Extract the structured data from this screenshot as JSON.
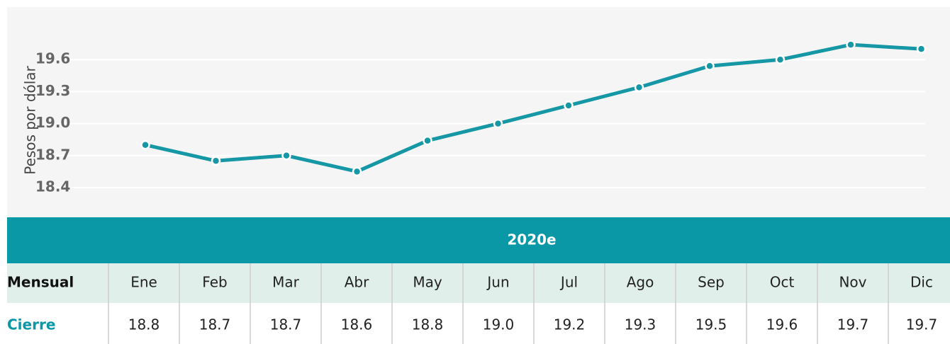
{
  "chart_data": {
    "type": "line",
    "ylabel": "Pesos por dólar",
    "values": [
      18.8,
      18.65,
      18.7,
      18.55,
      18.84,
      19.0,
      19.17,
      19.34,
      19.54,
      19.6,
      19.74,
      19.7
    ],
    "color": "#1597a5",
    "ylim": [
      18.3,
      20.0
    ],
    "yticks": [
      18.4,
      18.7,
      {
        "value": 19,
        "label": "19.0"
      },
      19.3,
      19.6
    ],
    "grid": true
  },
  "table": {
    "header": "2020e",
    "rows": [
      [
        "Mensual",
        "Ene",
        "Feb",
        "Mar",
        "Abr",
        "May",
        "Jun",
        "Jul",
        "Ago",
        "Sep",
        "Oct",
        "Nov",
        "Dic"
      ],
      [
        "Cierre",
        "18.8",
        "18.7",
        "18.7",
        "18.6",
        "18.8",
        "19.0",
        "19.2",
        "19.3",
        "19.5",
        "19.6",
        "19.7",
        "19.7"
      ]
    ]
  }
}
